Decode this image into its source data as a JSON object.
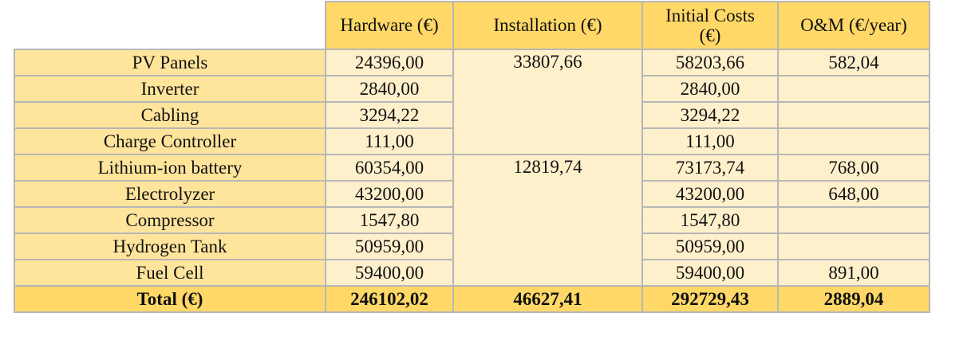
{
  "headers": {
    "hardware": "Hardware (€)",
    "installation": "Installation (€)",
    "initial_costs_line1": "Initial Costs",
    "initial_costs_line2": "(€)",
    "om": "O&M (€/year)"
  },
  "rows": [
    {
      "label": "PV Panels",
      "hardware": "24396,00",
      "initial": "58203,66",
      "om": "582,04"
    },
    {
      "label": "Inverter",
      "hardware": "2840,00",
      "initial": "2840,00",
      "om": ""
    },
    {
      "label": "Cabling",
      "hardware": "3294,22",
      "initial": "3294,22",
      "om": ""
    },
    {
      "label": "Charge Controller",
      "hardware": "111,00",
      "initial": "111,00",
      "om": ""
    },
    {
      "label": "Lithium-ion battery",
      "hardware": "60354,00",
      "initial": "73173,74",
      "om": "768,00"
    },
    {
      "label": "Electrolyzer",
      "hardware": "43200,00",
      "initial": "43200,00",
      "om": "648,00"
    },
    {
      "label": "Compressor",
      "hardware": "1547,80",
      "initial": "1547,80",
      "om": ""
    },
    {
      "label": "Hydrogen Tank",
      "hardware": "50959,00",
      "initial": "50959,00",
      "om": ""
    },
    {
      "label": "Fuel Cell",
      "hardware": "59400,00",
      "initial": "59400,00",
      "om": "891,00"
    }
  ],
  "installation_groups": [
    "33807,66",
    "12819,74"
  ],
  "total": {
    "label": "Total (€)",
    "hardware": "246102,02",
    "installation": "46627,41",
    "initial": "292729,43",
    "om": "2889,04"
  }
}
